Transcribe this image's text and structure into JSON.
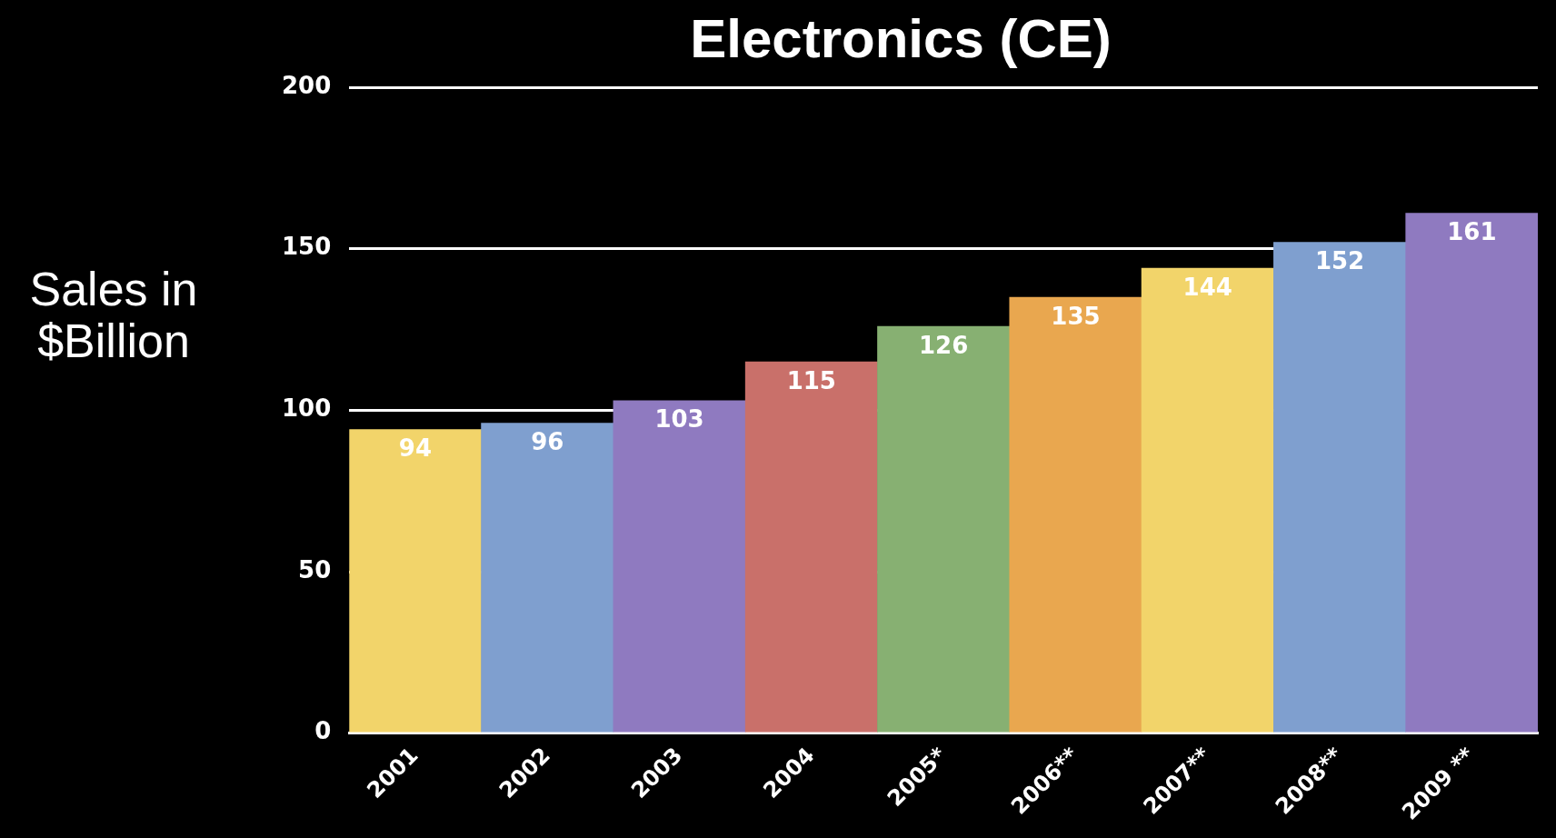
{
  "chart_data": {
    "type": "bar",
    "title": "Electronics (CE)",
    "ylabel": "Sales in $Billion",
    "categories": [
      "2001",
      "2002",
      "2003",
      "2004",
      "2005*",
      "2006**",
      "2007**",
      "2008**",
      "2009 **"
    ],
    "values": [
      94,
      96,
      103,
      115,
      126,
      135,
      144,
      152,
      161
    ],
    "colors": [
      "#f2d46a",
      "#7f9fcf",
      "#8f7ac0",
      "#c9706a",
      "#87b072",
      "#e9a74f",
      "#f2d46a",
      "#7f9fcf",
      "#8f7ac0"
    ],
    "ylim": [
      0,
      200
    ],
    "yticks": [
      0,
      50,
      100,
      150,
      200
    ],
    "grid": "y",
    "data_labels": true
  }
}
